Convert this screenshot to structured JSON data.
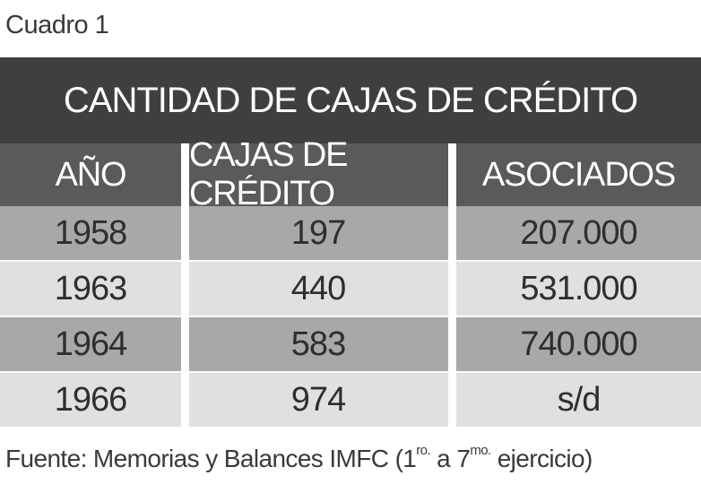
{
  "caption": "Cuadro 1",
  "table": {
    "title": "CANTIDAD DE CAJAS DE CRÉDITO",
    "headers": [
      "AÑO",
      "CAJAS DE CRÉDITO",
      "ASOCIADOS"
    ],
    "rows": [
      [
        "1958",
        "197",
        "207.000"
      ],
      [
        "1963",
        "440",
        "531.000"
      ],
      [
        "1964",
        "583",
        "740.000"
      ],
      [
        "1966",
        "974",
        "s/d"
      ]
    ]
  },
  "source": {
    "prefix": "Fuente: Memorias y Balances IMFC (1",
    "sup1": "ro.",
    "middle": " a 7",
    "sup2": "mo.",
    "suffix": " ejercicio)"
  }
}
